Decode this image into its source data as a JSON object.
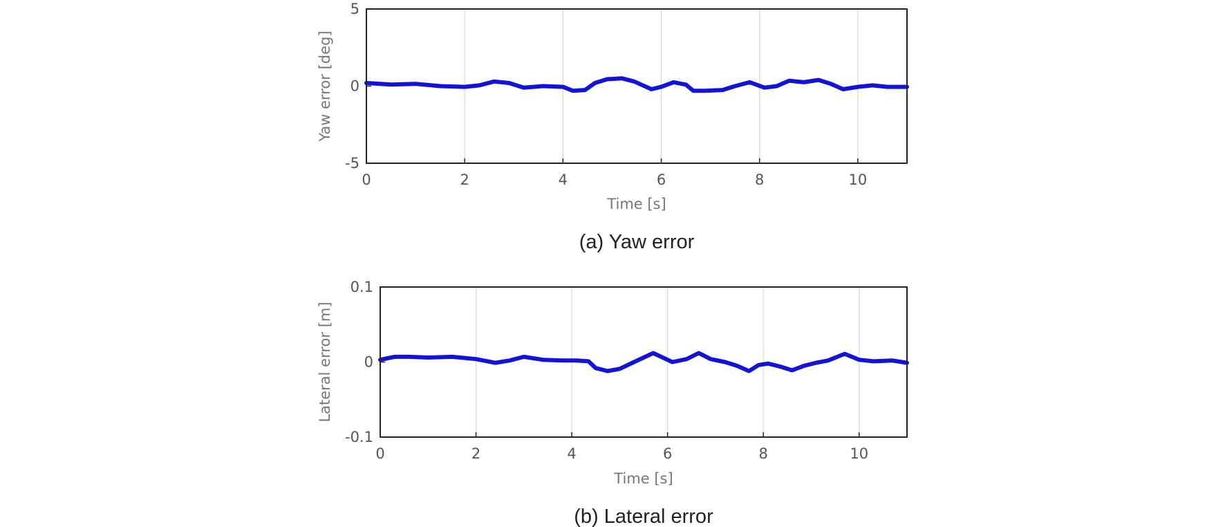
{
  "chart_data": [
    {
      "type": "line",
      "xlabel": "Time [s]",
      "ylabel": "Yaw error [deg]",
      "caption": "(a)  Yaw error",
      "xlim": [
        0,
        11
      ],
      "ylim": [
        -5,
        5
      ],
      "xticks": [
        0,
        2,
        4,
        6,
        8,
        10
      ],
      "yticks": [
        -5,
        0,
        5
      ],
      "grid": "vertical",
      "color": "#1212d8",
      "series": [
        {
          "x": [
            0,
            0.5,
            1,
            1.5,
            2,
            2.3,
            2.6,
            2.9,
            3.2,
            3.6,
            4,
            4.2,
            4.45,
            4.65,
            4.9,
            5.2,
            5.45,
            5.8,
            6.0,
            6.25,
            6.5,
            6.65,
            6.9,
            7.25,
            7.5,
            7.8,
            8.1,
            8.35,
            8.6,
            8.9,
            9.2,
            9.45,
            9.7,
            10.0,
            10.3,
            10.6,
            11
          ],
          "y": [
            0.2,
            0.1,
            0.15,
            0.0,
            -0.05,
            0.05,
            0.3,
            0.2,
            -0.1,
            0.0,
            -0.05,
            -0.3,
            -0.25,
            0.2,
            0.45,
            0.5,
            0.3,
            -0.2,
            -0.05,
            0.25,
            0.1,
            -0.3,
            -0.3,
            -0.25,
            0.0,
            0.25,
            -0.1,
            0.0,
            0.35,
            0.25,
            0.4,
            0.15,
            -0.2,
            -0.05,
            0.05,
            -0.05,
            -0.05
          ]
        }
      ]
    },
    {
      "type": "line",
      "xlabel": "Time [s]",
      "ylabel": "Lateral error [m]",
      "caption": "(b)  Lateral error",
      "xlim": [
        0,
        11
      ],
      "ylim": [
        -0.1,
        0.1
      ],
      "xticks": [
        0,
        2,
        4,
        6,
        8,
        10
      ],
      "yticks": [
        -0.1,
        0,
        0.1
      ],
      "grid": "vertical",
      "color": "#1212d8",
      "series": [
        {
          "x": [
            0,
            0.3,
            0.6,
            1.0,
            1.5,
            2.0,
            2.4,
            2.7,
            3.0,
            3.4,
            3.8,
            4.1,
            4.35,
            4.5,
            4.75,
            5.0,
            5.3,
            5.7,
            6.1,
            6.4,
            6.65,
            6.9,
            7.2,
            7.45,
            7.7,
            7.9,
            8.1,
            8.35,
            8.6,
            8.85,
            9.1,
            9.35,
            9.7,
            10.0,
            10.3,
            10.7,
            11
          ],
          "y": [
            0.003,
            0.007,
            0.007,
            0.006,
            0.007,
            0.004,
            -0.001,
            0.002,
            0.007,
            0.003,
            0.002,
            0.002,
            0.001,
            -0.008,
            -0.012,
            -0.009,
            0.0,
            0.012,
            0.0,
            0.004,
            0.012,
            0.004,
            0.0,
            -0.005,
            -0.012,
            -0.004,
            -0.002,
            -0.006,
            -0.011,
            -0.005,
            -0.001,
            0.002,
            0.011,
            0.003,
            0.001,
            0.002,
            -0.001
          ]
        }
      ]
    }
  ]
}
